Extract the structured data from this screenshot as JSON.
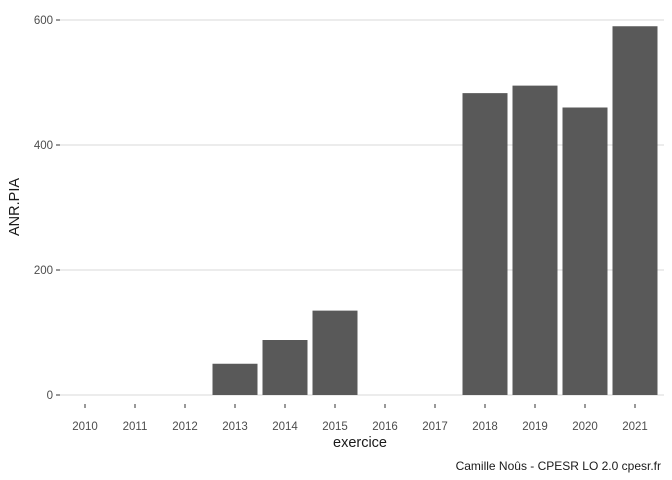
{
  "chart_data": {
    "type": "bar",
    "categories": [
      "2010",
      "2011",
      "2012",
      "2013",
      "2014",
      "2015",
      "2016",
      "2017",
      "2018",
      "2019",
      "2020",
      "2021"
    ],
    "values": [
      0,
      0,
      0,
      50,
      88,
      135,
      0,
      0,
      483,
      495,
      460,
      590
    ],
    "xlabel": "exercice",
    "ylabel": "ANR.PIA",
    "ylim": [
      0,
      620
    ],
    "yticks": [
      0,
      200,
      400,
      600
    ],
    "grid": "horizontal",
    "bar_color": "#595959",
    "grid_color": "#d9d9d9",
    "caption": "Camille Noûs - CPESR LO 2.0 cpesr.fr"
  }
}
